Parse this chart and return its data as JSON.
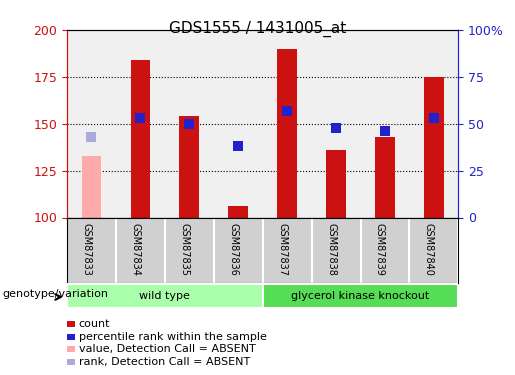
{
  "title": "GDS1555 / 1431005_at",
  "samples": [
    "GSM87833",
    "GSM87834",
    "GSM87835",
    "GSM87836",
    "GSM87837",
    "GSM87838",
    "GSM87839",
    "GSM87840"
  ],
  "count_values": [
    133,
    184,
    154,
    106,
    190,
    136,
    143,
    175
  ],
  "rank_values": [
    143,
    153,
    150,
    138,
    157,
    148,
    146,
    153
  ],
  "absent_flags": [
    true,
    false,
    false,
    false,
    false,
    false,
    false,
    false
  ],
  "ylim_left": [
    100,
    200
  ],
  "ylim_right": [
    0,
    100
  ],
  "yticks_left": [
    100,
    125,
    150,
    175,
    200
  ],
  "ytick_labels_left": [
    "100",
    "125",
    "150",
    "175",
    "200"
  ],
  "ytick_labels_right": [
    "0",
    "25",
    "50",
    "75",
    "100%"
  ],
  "groups": [
    {
      "label": "wild type",
      "start": 0,
      "end": 3,
      "color": "#aaffaa"
    },
    {
      "label": "glycerol kinase knockout",
      "start": 4,
      "end": 7,
      "color": "#55dd55"
    }
  ],
  "bar_color_present": "#cc1111",
  "bar_color_absent": "#ffaaaa",
  "rank_color_present": "#2222cc",
  "rank_color_absent": "#aaaadd",
  "bar_width": 0.4,
  "rank_marker_size": 60,
  "background_color": "#ffffff",
  "left_axis_color": "#cc1111",
  "right_axis_color": "#2222cc"
}
